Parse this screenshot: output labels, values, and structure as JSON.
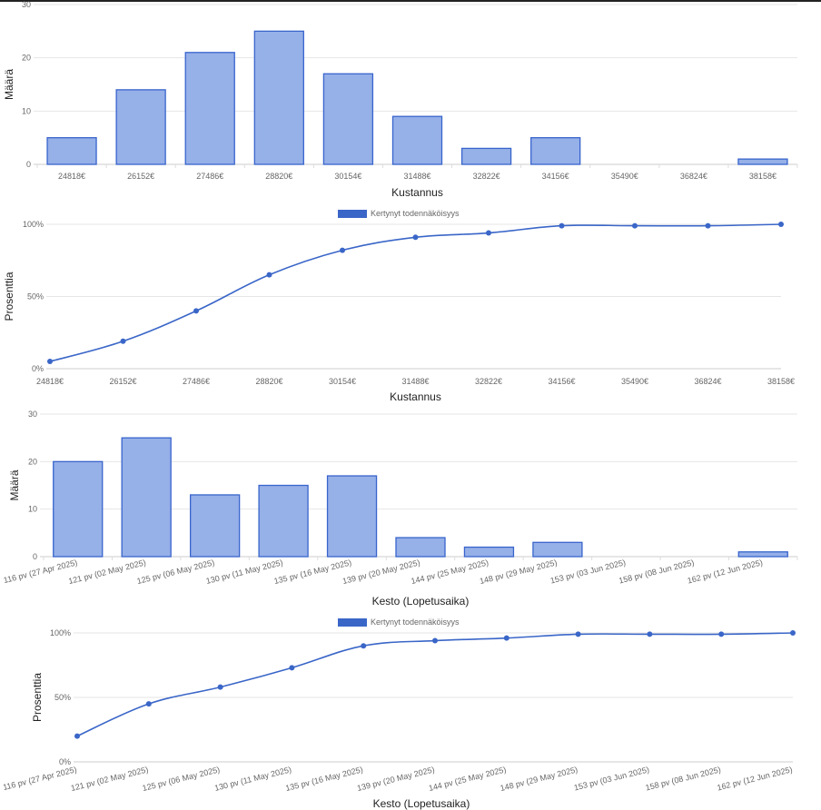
{
  "colors": {
    "bar_fill": "#96b0e8",
    "bar_stroke": "#3864cc",
    "line": "#3a66c8",
    "grid": "#e6e6e6"
  },
  "chart_data": [
    {
      "type": "bar",
      "categories": [
        "24818€",
        "26152€",
        "27486€",
        "28820€",
        "30154€",
        "31488€",
        "32822€",
        "34156€",
        "35490€",
        "36824€",
        "38158€"
      ],
      "values": [
        5,
        14,
        21,
        25,
        17,
        9,
        3,
        5,
        0,
        0,
        1
      ],
      "ylim": [
        0,
        30
      ],
      "yticks": [
        "0",
        "10",
        "20",
        "30"
      ],
      "xlabel": "Kustannus",
      "ylabel": "Määrä",
      "grid": true
    },
    {
      "type": "line",
      "categories": [
        "24818€",
        "26152€",
        "27486€",
        "28820€",
        "30154€",
        "31488€",
        "32822€",
        "34156€",
        "35490€",
        "36824€",
        "38158€"
      ],
      "values": [
        5,
        19,
        40,
        65,
        82,
        91,
        94,
        99,
        99,
        99,
        100
      ],
      "ylim": [
        0,
        100
      ],
      "yticks": [
        "0%",
        "50%",
        "100%"
      ],
      "xlabel": "Kustannus",
      "ylabel": "Prosenttia",
      "legend": "Kertynyt todennäköisyys",
      "legend_position": "top-center",
      "grid": true
    },
    {
      "type": "bar",
      "categories": [
        "116 pv (27 Apr 2025)",
        "121 pv (02 May 2025)",
        "125 pv (06 May 2025)",
        "130 pv (11 May 2025)",
        "135 pv (16 May 2025)",
        "139 pv (20 May 2025)",
        "144 pv (25 May 2025)",
        "148 pv (29 May 2025)",
        "153 pv (03 Jun 2025)",
        "158 pv (08 Jun 2025)",
        "162 pv (12 Jun 2025)"
      ],
      "values": [
        20,
        25,
        13,
        15,
        17,
        4,
        2,
        3,
        0,
        0,
        1
      ],
      "ylim": [
        0,
        30
      ],
      "yticks": [
        "0",
        "10",
        "20",
        "30"
      ],
      "xlabel": "Kesto (Lopetusaika)",
      "ylabel": "Määrä",
      "grid": true
    },
    {
      "type": "line",
      "categories": [
        "116 pv (27 Apr 2025)",
        "121 pv (02 May 2025)",
        "125 pv (06 May 2025)",
        "130 pv (11 May 2025)",
        "135 pv (16 May 2025)",
        "139 pv (20 May 2025)",
        "144 pv (25 May 2025)",
        "148 pv (29 May 2025)",
        "153 pv (03 Jun 2025)",
        "158 pv (08 Jun 2025)",
        "162 pv (12 Jun 2025)"
      ],
      "values": [
        20,
        45,
        58,
        73,
        90,
        94,
        96,
        99,
        99,
        99,
        100
      ],
      "ylim": [
        0,
        100
      ],
      "yticks": [
        "0%",
        "50%",
        "100%"
      ],
      "xlabel": "Kesto (Lopetusaika)",
      "ylabel": "Prosenttia",
      "legend": "Kertynyt todennäköisyys",
      "legend_position": "top-center",
      "grid": true
    }
  ]
}
